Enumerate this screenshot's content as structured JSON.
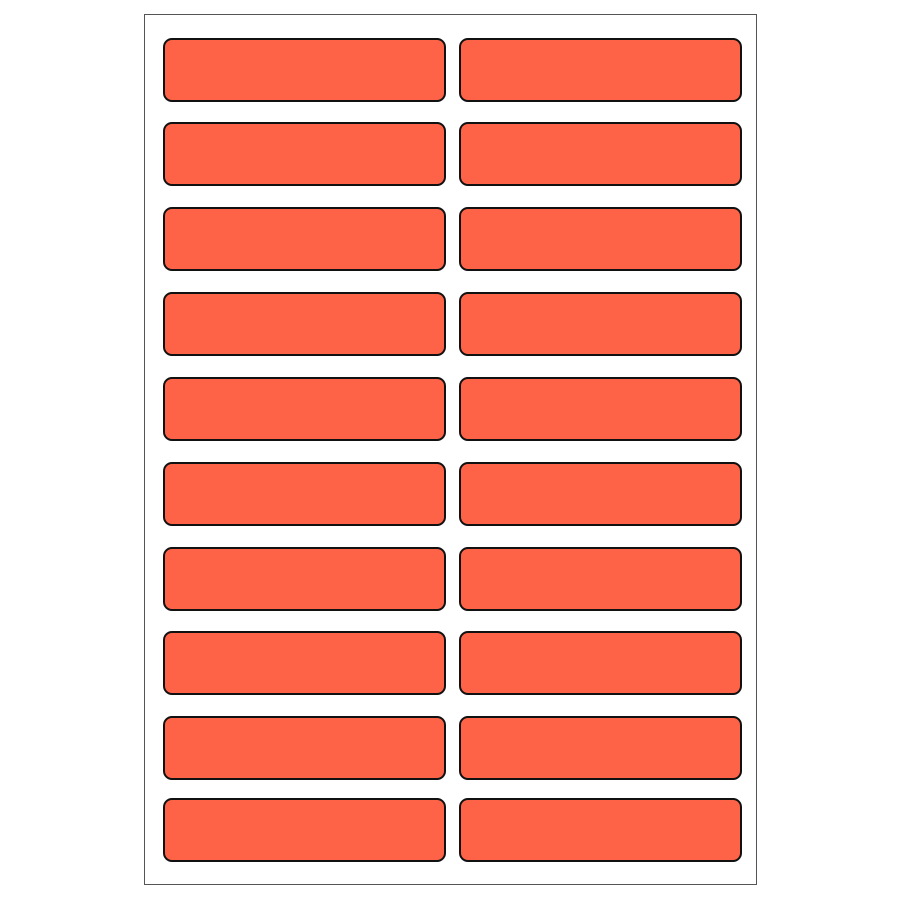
{
  "sheet": {
    "label_count": 20,
    "columns": 2,
    "rows": 10,
    "label_color": "#FF6347",
    "border_color": "#111111",
    "sheet_border_color": "#555555"
  }
}
